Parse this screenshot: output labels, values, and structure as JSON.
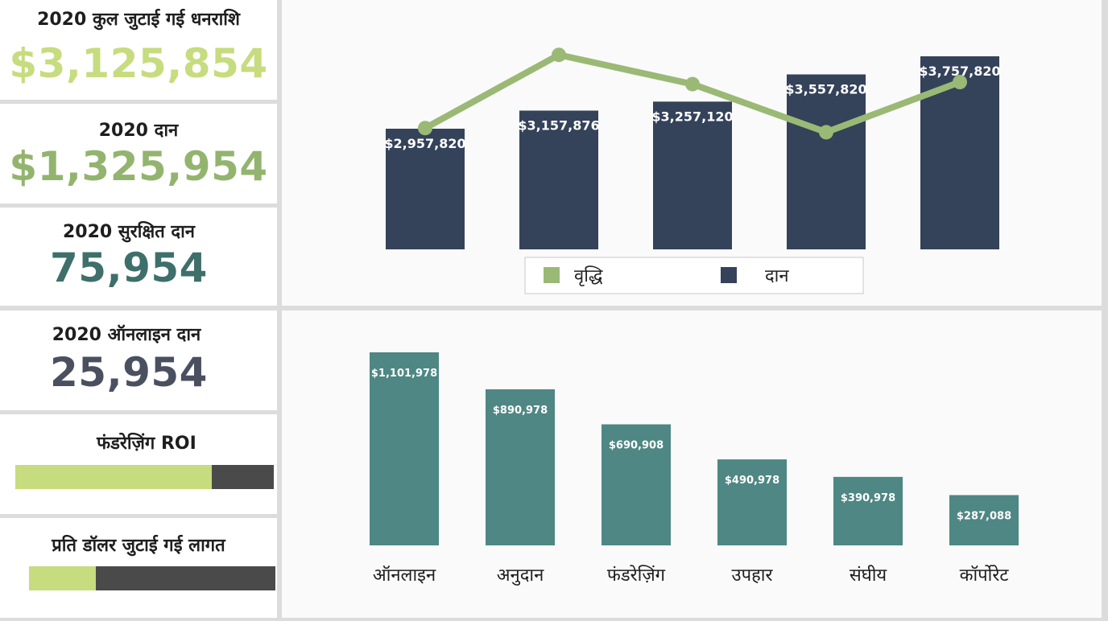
{
  "colors": {
    "kpi_value_1": "#c6dc7e",
    "kpi_value_2": "#93b46e",
    "kpi_value_3": "#3f6f6a",
    "kpi_value_4": "#4a5060",
    "navy_bar": "#34425a",
    "growth_line": "#9ab975",
    "teal_bar": "#4e8784",
    "progress_fill": "#c6dc7e",
    "progress_track": "#4a4a4a"
  },
  "kpis": [
    {
      "title": "2020 कुल जुटाई गई धनराशि",
      "value": "$3,125,854"
    },
    {
      "title": "2020 दान",
      "value": "$1,325,954"
    },
    {
      "title": "2020 सुरक्षित दान",
      "value": "75,954"
    },
    {
      "title": "2020 ऑनलाइन दान",
      "value": "25,954"
    }
  ],
  "progress": [
    {
      "title": "फंडरेज़िंग ROI",
      "fraction": 0.76
    },
    {
      "title": "प्रति डॉलर जुटाई गई लागत",
      "fraction": 0.27
    }
  ],
  "chart_data": [
    {
      "type": "bar",
      "series": [
        {
          "name": "दान",
          "type": "bar",
          "values": [
            2957820,
            3157876,
            3257120,
            3557820,
            3757820
          ],
          "labels": [
            "$2,957,820",
            "$3,157,876",
            "$3,257,120",
            "$3,557,820",
            "$3,757,820"
          ]
        },
        {
          "name": "वृद्धि",
          "type": "line",
          "values": [
            0.58,
            0.93,
            0.79,
            0.56,
            0.8
          ]
        }
      ],
      "legend": {
        "position": "bottom",
        "items": [
          "वृद्धि",
          "दान"
        ]
      },
      "grid": false
    },
    {
      "type": "bar",
      "categories": [
        "ऑनलाइन",
        "अनुदान",
        "फंडरेज़िंग",
        "उपहार",
        "संघीय",
        "कॉर्पोरेट"
      ],
      "values": [
        1101978,
        890978,
        690908,
        490978,
        390978,
        287088
      ],
      "labels": [
        "$1,101,978",
        "$890,978",
        "$690,908",
        "$490,978",
        "$390,978",
        "$287,088"
      ],
      "grid": false
    }
  ]
}
